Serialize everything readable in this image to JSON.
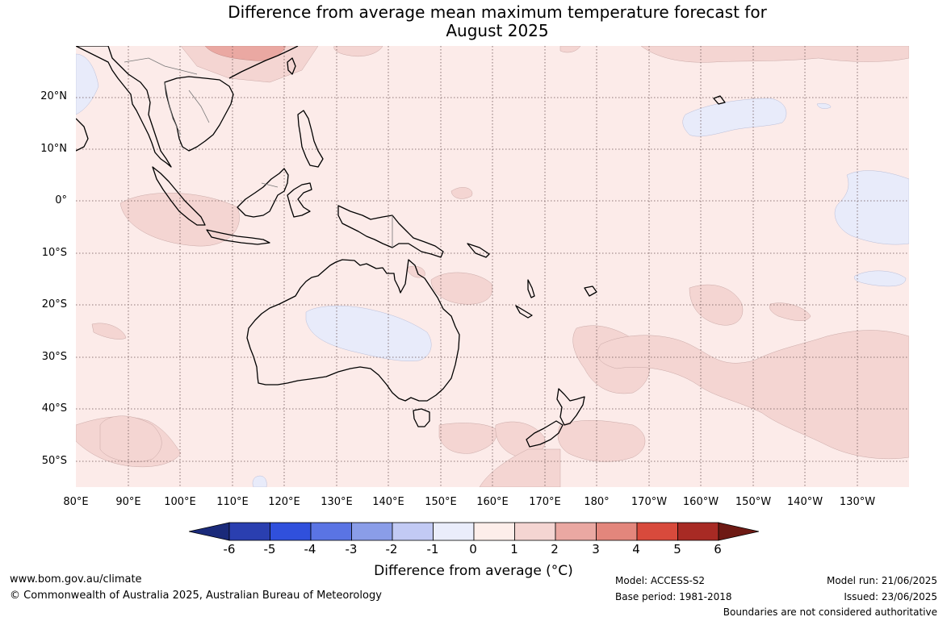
{
  "title_line1": "Difference from average mean maximum temperature forecast for",
  "title_line2": "August 2025",
  "latitude_labels": [
    "20°N",
    "10°N",
    "0°",
    "10°S",
    "20°S",
    "30°S",
    "40°S",
    "50°S"
  ],
  "longitude_labels": [
    "80°E",
    "90°E",
    "100°E",
    "110°E",
    "120°E",
    "130°E",
    "140°E",
    "150°E",
    "160°E",
    "170°E",
    "180°",
    "170°W",
    "160°W",
    "150°W",
    "140°W",
    "130°W"
  ],
  "colorbar": {
    "ticks": [
      "-6",
      "-5",
      "-4",
      "-3",
      "-2",
      "-1",
      "0",
      "1",
      "2",
      "3",
      "4",
      "5",
      "6"
    ],
    "colors": [
      "#1a2a7a",
      "#2a3fb0",
      "#3050dc",
      "#5a74e4",
      "#8a9de8",
      "#c2caf4",
      "#eaedfb",
      "#fdeeea",
      "#f4d5d2",
      "#eaa8a2",
      "#e3867c",
      "#d84a3c",
      "#a82a24",
      "#6e1a14"
    ],
    "label": "Difference from average (°C)"
  },
  "footer": {
    "website": "www.bom.gov.au/climate",
    "copyright": "© Commonwealth of Australia 2025, Australian Bureau of Meteorology",
    "model": "Model: ACCESS-S2",
    "base_period": "Base period: 1981-2018",
    "model_run": "Model run: 21/06/2025",
    "issued": "Issued: 23/06/2025",
    "disclaimer": "Boundaries are not considered authoritative"
  }
}
